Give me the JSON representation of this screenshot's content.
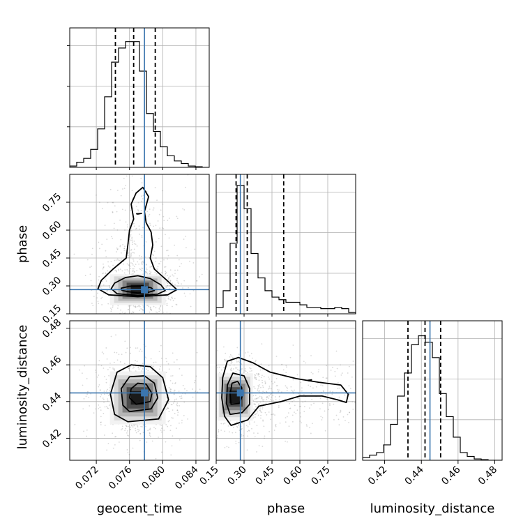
{
  "chart_data": {
    "type": "corner",
    "title": "",
    "truth_color": "#3b76af",
    "quantile_style": "black dashed",
    "grid": true,
    "parameters": [
      {
        "name": "geocent_time",
        "range": [
          0.0688,
          0.0856
        ],
        "ticks": [
          "0.072",
          "0.076",
          "0.080",
          "0.084"
        ],
        "tick_values": [
          0.072,
          0.076,
          0.08,
          0.084
        ],
        "truth": 0.0778,
        "quantiles": [
          0.0743,
          0.0765,
          0.0791
        ]
      },
      {
        "name": "phase",
        "range": [
          0.15,
          0.9
        ],
        "ticks": [
          "0.15",
          "0.30",
          "0.45",
          "0.60",
          "0.75"
        ],
        "tick_values": [
          0.15,
          0.3,
          0.45,
          0.6,
          0.75
        ],
        "truth": 0.28,
        "quantiles": [
          0.257,
          0.317,
          0.513
        ]
      },
      {
        "name": "luminosity_distance",
        "range": [
          0.408,
          0.484
        ],
        "ticks": [
          "0.42",
          "0.44",
          "0.46",
          "0.48"
        ],
        "tick_values": [
          0.42,
          0.44,
          0.46,
          0.48
        ],
        "truth": 0.4447,
        "quantiles": [
          0.4327,
          0.442,
          0.4505
        ]
      }
    ],
    "histograms": {
      "geocent_time": {
        "bin_start": 0.0688,
        "bin_width": 0.00084,
        "counts": [
          0.01,
          0.04,
          0.07,
          0.14,
          0.3,
          0.55,
          0.82,
          0.93,
          0.98,
          0.98,
          0.75,
          0.42,
          0.28,
          0.16,
          0.09,
          0.05,
          0.03,
          0.01,
          0.005,
          0.0
        ]
      },
      "phase": {
        "bin_start": 0.15,
        "bin_width": 0.0375,
        "counts": [
          0.05,
          0.18,
          0.55,
          1.0,
          0.82,
          0.47,
          0.28,
          0.18,
          0.13,
          0.11,
          0.09,
          0.09,
          0.07,
          0.05,
          0.05,
          0.04,
          0.04,
          0.05,
          0.04,
          0.01
        ]
      },
      "luminosity_distance": {
        "bin_start": 0.408,
        "bin_width": 0.0038,
        "counts": [
          0.02,
          0.04,
          0.06,
          0.12,
          0.28,
          0.5,
          0.68,
          0.9,
          0.97,
          0.92,
          0.8,
          0.52,
          0.34,
          0.18,
          0.06,
          0.03,
          0.01,
          0.005,
          0.0,
          0.0
        ]
      }
    },
    "density_2d": [
      {
        "x": "geocent_time",
        "y": "phase",
        "peak": [
          0.077,
          0.28
        ],
        "contours": [
          [
            [
              0.0757,
              0.27
            ],
            [
              0.077,
              0.262
            ],
            [
              0.0783,
              0.266
            ],
            [
              0.079,
              0.275
            ],
            [
              0.0786,
              0.29
            ],
            [
              0.0775,
              0.3
            ],
            [
              0.076,
              0.298
            ],
            [
              0.075,
              0.288
            ],
            [
              0.0751,
              0.276
            ]
          ],
          [
            [
              0.0745,
              0.258
            ],
            [
              0.077,
              0.248
            ],
            [
              0.0794,
              0.256
            ],
            [
              0.0803,
              0.275
            ],
            [
              0.0798,
              0.305
            ],
            [
              0.0785,
              0.34
            ],
            [
              0.077,
              0.355
            ],
            [
              0.0755,
              0.345
            ],
            [
              0.0742,
              0.315
            ],
            [
              0.0738,
              0.285
            ]
          ],
          [
            [
              0.0735,
              0.252
            ],
            [
              0.077,
              0.242
            ],
            [
              0.0806,
              0.252
            ],
            [
              0.0817,
              0.28
            ],
            [
              0.0805,
              0.33
            ],
            [
              0.079,
              0.39
            ],
            [
              0.0785,
              0.45
            ],
            [
              0.0788,
              0.52
            ],
            [
              0.0786,
              0.59
            ],
            [
              0.078,
              0.64
            ],
            [
              0.0778,
              0.7
            ],
            [
              0.0783,
              0.78
            ],
            [
              0.0776,
              0.83
            ],
            [
              0.0768,
              0.8
            ],
            [
              0.0762,
              0.74
            ],
            [
              0.0765,
              0.66
            ],
            [
              0.076,
              0.6
            ],
            [
              0.0758,
              0.52
            ],
            [
              0.0756,
              0.45
            ],
            [
              0.074,
              0.39
            ],
            [
              0.0726,
              0.33
            ],
            [
              0.0722,
              0.285
            ]
          ]
        ]
      },
      {
        "x": "geocent_time",
        "y": "luminosity_distance",
        "peak": [
          0.077,
          0.442
        ],
        "contours": [
          [
            [
              0.0768,
              0.4385
            ],
            [
              0.0785,
              0.44
            ],
            [
              0.0787,
              0.4445
            ],
            [
              0.078,
              0.4495
            ],
            [
              0.077,
              0.45
            ],
            [
              0.0762,
              0.447
            ],
            [
              0.076,
              0.442
            ]
          ],
          [
            [
              0.076,
              0.4345
            ],
            [
              0.0786,
              0.436
            ],
            [
              0.0794,
              0.442
            ],
            [
              0.079,
              0.45
            ],
            [
              0.0778,
              0.454
            ],
            [
              0.076,
              0.4535
            ],
            [
              0.075,
              0.447
            ],
            [
              0.0752,
              0.438
            ]
          ],
          [
            [
              0.0758,
              0.429
            ],
            [
              0.0795,
              0.4305
            ],
            [
              0.0807,
              0.441
            ],
            [
              0.08,
              0.453
            ],
            [
              0.0785,
              0.459
            ],
            [
              0.0762,
              0.46
            ],
            [
              0.0745,
              0.456
            ],
            [
              0.0737,
              0.444
            ],
            [
              0.0742,
              0.433
            ]
          ]
        ]
      },
      {
        "x": "phase",
        "y": "luminosity_distance",
        "peak": [
          0.25,
          0.4425
        ],
        "contours": [
          [
            [
              0.23,
              0.4385
            ],
            [
              0.275,
              0.439
            ],
            [
              0.29,
              0.443
            ],
            [
              0.285,
              0.448
            ],
            [
              0.265,
              0.451
            ],
            [
              0.235,
              0.45
            ],
            [
              0.225,
              0.444
            ]
          ],
          [
            [
              0.225,
              0.433
            ],
            [
              0.29,
              0.434
            ],
            [
              0.33,
              0.4385
            ],
            [
              0.33,
              0.447
            ],
            [
              0.3,
              0.454
            ],
            [
              0.24,
              0.4555
            ],
            [
              0.21,
              0.449
            ],
            [
              0.205,
              0.439
            ]
          ],
          [
            [
              0.23,
              0.427
            ],
            [
              0.32,
              0.43
            ],
            [
              0.38,
              0.4375
            ],
            [
              0.5,
              0.44
            ],
            [
              0.6,
              0.443
            ],
            [
              0.72,
              0.443
            ],
            [
              0.8,
              0.441
            ],
            [
              0.85,
              0.4395
            ],
            [
              0.86,
              0.444
            ],
            [
              0.82,
              0.449
            ],
            [
              0.7,
              0.4505
            ],
            [
              0.58,
              0.4525
            ],
            [
              0.44,
              0.456
            ],
            [
              0.35,
              0.461
            ],
            [
              0.27,
              0.464
            ],
            [
              0.21,
              0.462
            ],
            [
              0.185,
              0.453
            ],
            [
              0.18,
              0.442
            ],
            [
              0.195,
              0.432
            ]
          ]
        ]
      }
    ],
    "small_contours": [
      {
        "x": "geocent_time",
        "y": "phase",
        "points": [
          [
            0.0768,
            0.688
          ],
          [
            0.0775,
            0.69
          ],
          [
            0.077,
            0.686
          ]
        ]
      },
      {
        "x": "phase",
        "y": "luminosity_distance",
        "points": [
          [
            0.64,
            0.4516
          ],
          [
            0.665,
            0.4519
          ],
          [
            0.65,
            0.4512
          ]
        ]
      }
    ]
  }
}
